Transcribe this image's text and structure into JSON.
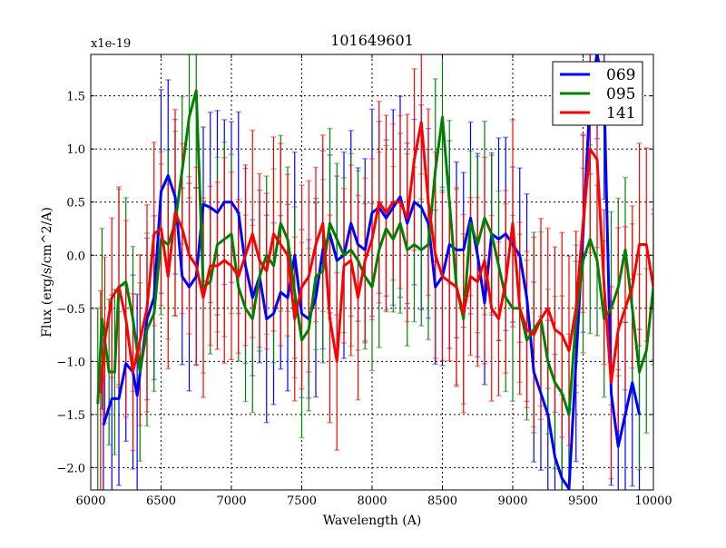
{
  "chart_data": {
    "type": "line",
    "title": "101649601",
    "xlabel": "Wavelength (A)",
    "ylabel": "Flux (erg/s/cm^2/A)",
    "y_offset_label": "x1e-19",
    "xlim": [
      6000,
      10000
    ],
    "ylim": [
      -2.21,
      1.89
    ],
    "xticks": [
      6000,
      6500,
      7000,
      7500,
      8000,
      8500,
      9000,
      9500,
      10000
    ],
    "xtick_labels": [
      "6000",
      "6500",
      "7000",
      "7500",
      "8000",
      "8500",
      "9000",
      "9500",
      "10000"
    ],
    "yticks": [
      -2.0,
      -1.5,
      -1.0,
      -0.5,
      0.0,
      0.5,
      1.0,
      1.5
    ],
    "ytick_labels": [
      "−2.0",
      "−1.5",
      "−1.0",
      "−0.5",
      "0.0",
      "0.5",
      "1.0",
      "1.5"
    ],
    "grid": true,
    "legend_position": "top-right",
    "series": [
      {
        "name": "069",
        "color": "#0000ff",
        "yerr": 0.85,
        "x": [
          6090,
          6150,
          6200,
          6250,
          6300,
          6330,
          6400,
          6450,
          6500,
          6550,
          6600,
          6650,
          6700,
          6750,
          6800,
          6850,
          6900,
          6950,
          7000,
          7050,
          7100,
          7150,
          7200,
          7250,
          7300,
          7350,
          7400,
          7450,
          7500,
          7550,
          7600,
          7650,
          7700,
          7750,
          7800,
          7850,
          7900,
          7950,
          8000,
          8050,
          8100,
          8150,
          8200,
          8250,
          8300,
          8350,
          8400,
          8450,
          8500,
          8550,
          8600,
          8650,
          8700,
          8750,
          8800,
          8850,
          8900,
          8950,
          9000,
          9050,
          9100,
          9150,
          9200,
          9250,
          9300,
          9350,
          9400,
          9450,
          9500,
          9550,
          9600,
          9650,
          9700,
          9750,
          9800,
          9850,
          9900
        ],
        "y": [
          -1.6,
          -1.35,
          -1.35,
          -1.02,
          -1.1,
          -1.32,
          -0.6,
          -0.4,
          0.6,
          0.75,
          0.55,
          -0.2,
          -0.3,
          -0.2,
          0.48,
          0.45,
          0.4,
          0.5,
          0.5,
          0.4,
          -0.1,
          -0.4,
          -0.2,
          -0.6,
          -0.55,
          -0.35,
          -0.4,
          0.0,
          -0.55,
          -0.6,
          -0.4,
          0.05,
          0.2,
          -0.05,
          0.0,
          0.3,
          0.1,
          0.05,
          0.4,
          0.45,
          0.35,
          0.45,
          0.55,
          0.3,
          0.5,
          0.45,
          0.3,
          -0.3,
          -0.2,
          0.1,
          0.05,
          0.05,
          0.35,
          0.0,
          -0.45,
          0.2,
          0.15,
          0.2,
          0.1,
          0.0,
          -0.4,
          -1.1,
          -1.3,
          -1.5,
          -1.9,
          -2.1,
          -2.2,
          -1.0,
          0.2,
          1.5,
          1.9,
          1.5,
          -1.3,
          -1.8,
          -1.5,
          -1.2,
          -1.5
        ]
      },
      {
        "name": "095",
        "color": "#008000",
        "yerr": 0.8,
        "x": [
          6050,
          6080,
          6130,
          6170,
          6200,
          6250,
          6300,
          6350,
          6400,
          6450,
          6500,
          6550,
          6600,
          6650,
          6700,
          6750,
          6800,
          6850,
          6900,
          6950,
          7000,
          7050,
          7100,
          7150,
          7200,
          7250,
          7300,
          7350,
          7400,
          7450,
          7500,
          7550,
          7600,
          7650,
          7700,
          7750,
          7800,
          7850,
          7900,
          7950,
          8000,
          8050,
          8100,
          8150,
          8200,
          8250,
          8300,
          8350,
          8400,
          8450,
          8500,
          8550,
          8600,
          8650,
          8700,
          8750,
          8800,
          8850,
          8900,
          8950,
          9000,
          9050,
          9100,
          9150,
          9200,
          9250,
          9300,
          9350,
          9400,
          9450,
          9500,
          9550,
          9600,
          9650,
          9700,
          9750,
          9800,
          9850,
          9900,
          9950,
          10000
        ],
        "y": [
          -1.4,
          -0.6,
          -1.1,
          -1.1,
          -0.3,
          -0.25,
          -0.6,
          -1.1,
          -0.7,
          -0.55,
          0.15,
          0.1,
          0.3,
          0.8,
          1.3,
          1.55,
          -0.3,
          -0.25,
          0.1,
          0.15,
          0.2,
          -0.3,
          -0.5,
          -0.6,
          -0.2,
          0.0,
          -0.1,
          0.3,
          0.15,
          -0.35,
          -0.8,
          -0.7,
          -0.2,
          -0.15,
          0.3,
          0.15,
          0.0,
          0.05,
          -0.05,
          -0.2,
          -0.3,
          0.05,
          0.25,
          0.15,
          0.3,
          0.05,
          0.1,
          0.05,
          0.1,
          0.8,
          1.3,
          0.5,
          -0.3,
          -0.6,
          0.3,
          0.1,
          0.35,
          0.2,
          -0.1,
          -0.4,
          -0.5,
          -0.5,
          -0.8,
          -0.7,
          -0.6,
          -1.0,
          -1.2,
          -1.3,
          -1.5,
          -0.6,
          -0.05,
          0.15,
          -0.05,
          -0.6,
          -0.5,
          -0.3,
          0.05,
          -0.5,
          -1.1,
          -0.9,
          -0.3
        ]
      },
      {
        "name": "141",
        "color": "#ff0000",
        "yerr": 0.85,
        "x": [
          6070,
          6100,
          6150,
          6200,
          6250,
          6300,
          6350,
          6400,
          6450,
          6500,
          6550,
          6600,
          6650,
          6700,
          6750,
          6800,
          6850,
          6900,
          6950,
          7000,
          7050,
          7100,
          7150,
          7200,
          7250,
          7300,
          7350,
          7400,
          7450,
          7500,
          7550,
          7600,
          7650,
          7700,
          7750,
          7800,
          7850,
          7900,
          7950,
          8000,
          8050,
          8100,
          8150,
          8200,
          8250,
          8300,
          8350,
          8400,
          8450,
          8500,
          8550,
          8600,
          8650,
          8700,
          8750,
          8800,
          8850,
          8900,
          8950,
          9000,
          9050,
          9100,
          9150,
          9200,
          9250,
          9300,
          9350,
          9400,
          9450,
          9500,
          9550,
          9600,
          9650,
          9700,
          9750,
          9800,
          9850,
          9900,
          9950,
          10000
        ],
        "y": [
          -1.3,
          -0.8,
          -0.4,
          -0.3,
          -0.6,
          -1.1,
          -0.8,
          -0.5,
          0.2,
          0.25,
          -0.2,
          0.4,
          0.25,
          0.0,
          -0.1,
          -0.4,
          -0.1,
          -0.1,
          -0.05,
          -0.1,
          -0.2,
          0.0,
          0.2,
          -0.05,
          -0.15,
          0.2,
          0.1,
          0.0,
          -0.6,
          -0.3,
          -0.2,
          0.1,
          0.3,
          -0.6,
          -1.0,
          -0.1,
          -0.05,
          -0.4,
          -0.05,
          0.15,
          0.5,
          0.4,
          0.5,
          0.5,
          0.35,
          0.9,
          1.25,
          0.5,
          0.0,
          -0.2,
          -0.25,
          -0.3,
          -0.55,
          -0.2,
          -0.25,
          -0.05,
          -0.5,
          -0.6,
          -0.25,
          0.3,
          -0.5,
          -0.7,
          -0.75,
          -0.6,
          -0.5,
          -0.7,
          -0.75,
          -0.9,
          -0.5,
          0.3,
          1.0,
          0.9,
          -0.3,
          -1.2,
          -0.7,
          -0.5,
          -0.3,
          0.1,
          0.1,
          -0.3
        ]
      }
    ]
  }
}
